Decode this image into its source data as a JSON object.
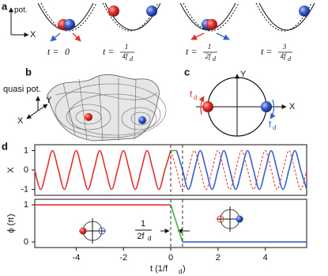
{
  "panels": {
    "a": "a",
    "b": "b",
    "c": "c",
    "d": "d"
  },
  "panel_a": {
    "pot_label": "pot.",
    "x_label": "X",
    "captions": [
      {
        "prefix": "t =",
        "value": "0"
      },
      {
        "prefix": "t =",
        "num": "1",
        "den": "4f",
        "sub": "d"
      },
      {
        "prefix": "t =",
        "num": "1",
        "den": "2f",
        "sub": "d"
      },
      {
        "prefix": "t =",
        "num": "3",
        "den": "4f",
        "sub": "d"
      }
    ]
  },
  "panel_b": {
    "z_label": "quasi pot.",
    "y_label": "Y",
    "x_label": "X"
  },
  "panel_c": {
    "y_label": "Y",
    "x_label": "X",
    "red_label": "f",
    "red_sub": "d",
    "blue_label": "f",
    "blue_sub": "d"
  },
  "panel_d": {
    "annotation_num": "1",
    "annotation_den": "2f",
    "annotation_sub": "d",
    "xlabel": "t (1/f",
    "xlabel_sub": "d",
    "xlabel_end": ")"
  },
  "chart_data": [
    {
      "type": "line",
      "ylabel": "X",
      "xlim": [
        -5.75,
        5.75
      ],
      "ylim": [
        -1.3,
        1.3
      ],
      "yticks": [
        -1,
        0,
        1
      ],
      "vlines": [
        0,
        0.5
      ],
      "series": [
        {
          "color": "#e8302a",
          "dash": true,
          "x": [
            0,
            0.25,
            0.5,
            0.75,
            1,
            1.25,
            1.5,
            1.75,
            2,
            2.25,
            2.5,
            2.75,
            3,
            3.25,
            3.5,
            3.75,
            4,
            4.25,
            4.5,
            4.75,
            5,
            5.25,
            5.5,
            5.75
          ],
          "values": [
            1,
            0,
            -1,
            0,
            1,
            0,
            -1,
            0,
            1,
            0,
            -1,
            0,
            1,
            0,
            -1,
            0,
            1,
            0,
            -1,
            0,
            1,
            0,
            -1,
            0
          ]
        },
        {
          "color": "#e8302a",
          "dash": false,
          "x": [
            -5.75,
            -5.5,
            -5.25,
            -5,
            -4.75,
            -4.5,
            -4.25,
            -4,
            -3.75,
            -3.5,
            -3.25,
            -3,
            -2.75,
            -2.5,
            -2.25,
            -2,
            -1.75,
            -1.5,
            -1.25,
            -1,
            -0.75,
            -0.5,
            -0.25,
            0
          ],
          "values": [
            0,
            -1,
            0,
            1,
            0,
            -1,
            0,
            1,
            0,
            -1,
            0,
            1,
            0,
            -1,
            0,
            1,
            0,
            -1,
            0,
            1,
            0,
            -1,
            0,
            1
          ]
        },
        {
          "color": "#3a5fcd",
          "dash": false,
          "x": [
            0.25,
            0.5,
            0.75,
            1,
            1.25,
            1.5,
            1.75,
            2,
            2.25,
            2.5,
            2.75,
            3,
            3.25,
            3.5,
            3.75,
            4,
            4.25,
            4.5,
            4.75,
            5,
            5.25,
            5.5,
            5.75
          ],
          "values": [
            1,
            0,
            -1,
            0,
            1,
            0,
            -1,
            0,
            1,
            0,
            -1,
            0,
            1,
            0,
            -1,
            0,
            1,
            0,
            -1,
            0,
            1,
            0,
            -1
          ]
        },
        {
          "color": "#3db83d",
          "dash": false,
          "x": [
            0,
            0.25
          ],
          "values": [
            1,
            1
          ]
        }
      ]
    },
    {
      "type": "line",
      "ylabel": "ϕ (π)",
      "xlim": [
        -5.75,
        5.75
      ],
      "ylim": [
        -0.15,
        1.15
      ],
      "yticks": [
        0,
        1
      ],
      "xticks": [
        -4,
        -2,
        0,
        2,
        4
      ],
      "vlines": [
        0,
        0.5
      ],
      "series": [
        {
          "color": "#e8302a",
          "dash": false,
          "x": [
            -5.75,
            0
          ],
          "values": [
            1,
            1
          ]
        },
        {
          "color": "#3db83d",
          "dash": false,
          "x": [
            0,
            0.5
          ],
          "values": [
            1,
            0
          ]
        },
        {
          "color": "#3a5fcd",
          "dash": false,
          "x": [
            0.5,
            5.75
          ],
          "values": [
            0,
            0
          ]
        }
      ]
    }
  ]
}
